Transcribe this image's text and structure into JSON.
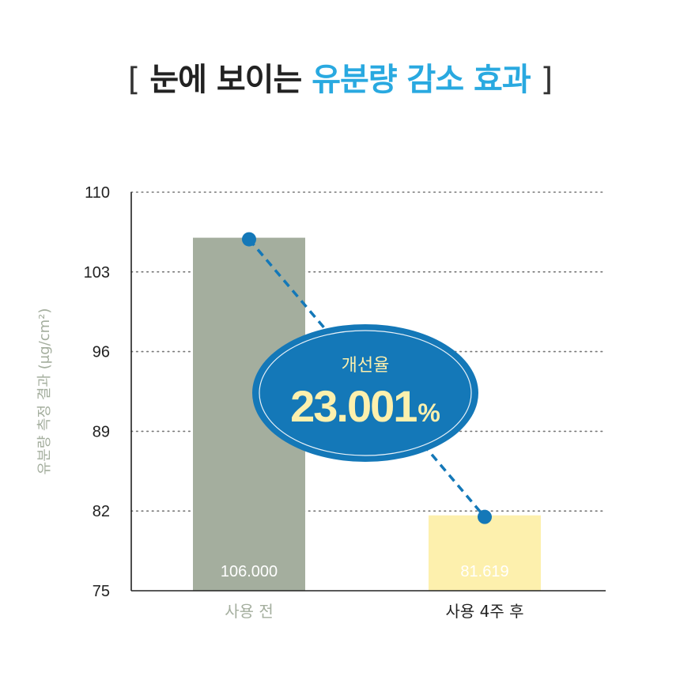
{
  "header": {
    "bracket_open": "[",
    "title_plain": "눈에 보이는",
    "title_highlight": "유분량 감소 효과",
    "bracket_close": "]"
  },
  "colors": {
    "highlight": "#29a9e0",
    "bar_before": "#a4ae9e",
    "bar_after": "#fdf0ad",
    "trend_line": "#1478b8",
    "ellipse_fill": "#1478b8",
    "ellipse_text": "#fdf0ad",
    "category_before": "#a4ae9e",
    "category_after": "#222222"
  },
  "chart_data": {
    "type": "bar",
    "title": "눈에 보이는 유분량 감소 효과",
    "ylabel": "유분량 측정 결과 (μg/cm²)",
    "xlabel": "",
    "categories": [
      "사용 전",
      "사용 4주 후"
    ],
    "values": [
      106.0,
      81.619
    ],
    "value_labels": [
      "106.000",
      "81.619"
    ],
    "ylim": [
      75,
      110
    ],
    "yticks": [
      75,
      82,
      89,
      96,
      103,
      110
    ],
    "grid": "horizontal-dotted",
    "overlay_line": true,
    "annotation": {
      "label": "개선율",
      "value": "23.001",
      "unit": "%"
    }
  }
}
